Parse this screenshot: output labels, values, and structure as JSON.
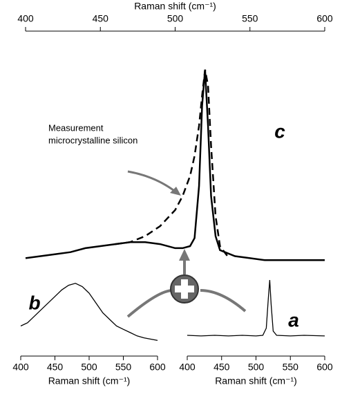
{
  "chart_data": [
    {
      "type": "line",
      "xlabel": "Raman shift (cm⁻¹)",
      "xaxis_position": "top",
      "xlim": [
        400,
        600
      ],
      "xticks": [
        400,
        450,
        500,
        550,
        600
      ],
      "ylim": [
        0,
        100
      ],
      "annotations": [
        "Measurement",
        "microcrystalline silicon",
        "c"
      ],
      "series": [
        {
          "color": "#000000",
          "linestyle": "solid",
          "x": [
            400,
            410,
            420,
            430,
            440,
            450,
            460,
            470,
            480,
            490,
            500,
            505,
            510,
            513,
            516,
            518,
            520,
            522,
            524,
            527,
            530,
            540,
            550,
            560,
            570,
            580,
            590,
            600
          ],
          "values": [
            4,
            5,
            6,
            7,
            9,
            10,
            11,
            12,
            12,
            11,
            9,
            9,
            10,
            14,
            40,
            80,
            98,
            70,
            35,
            15,
            8,
            5,
            4,
            3,
            3,
            3,
            3,
            3
          ]
        },
        {
          "color": "#000000",
          "linestyle": "dashed",
          "x": [
            460,
            470,
            480,
            490,
            500,
            505,
            510,
            513,
            516,
            518,
            520,
            522,
            524,
            527,
            530,
            535
          ],
          "values": [
            11,
            12,
            15,
            20,
            28,
            35,
            45,
            55,
            70,
            85,
            98,
            90,
            60,
            25,
            10,
            5
          ]
        }
      ]
    },
    {
      "type": "line",
      "xlabel": "Raman shift (cm⁻¹)",
      "xaxis_position": "bottom",
      "label": "b",
      "xlim": [
        400,
        600
      ],
      "xticks": [
        400,
        450,
        500,
        550,
        600
      ],
      "ylim": [
        0,
        100
      ],
      "series": [
        {
          "color": "#000000",
          "linestyle": "solid",
          "x": [
            400,
            410,
            420,
            430,
            440,
            450,
            460,
            470,
            480,
            490,
            500,
            510,
            520,
            530,
            540,
            550,
            560,
            570,
            580,
            590,
            600
          ],
          "values": [
            30,
            35,
            45,
            55,
            65,
            75,
            85,
            92,
            95,
            90,
            80,
            65,
            50,
            40,
            30,
            25,
            20,
            15,
            12,
            10,
            8
          ]
        }
      ]
    },
    {
      "type": "line",
      "xlabel": "Raman shift (cm⁻¹)",
      "xaxis_position": "bottom",
      "label": "a",
      "xlim": [
        400,
        600
      ],
      "xticks": [
        400,
        450,
        500,
        550,
        600
      ],
      "ylim": [
        0,
        100
      ],
      "series": [
        {
          "color": "#000000",
          "linestyle": "solid",
          "x": [
            400,
            420,
            440,
            460,
            480,
            500,
            510,
            515,
            518,
            520,
            522,
            525,
            530,
            550,
            570,
            600
          ],
          "values": [
            8,
            7,
            8,
            7,
            8,
            7,
            8,
            20,
            70,
            100,
            60,
            15,
            8,
            7,
            8,
            7
          ]
        }
      ]
    }
  ]
}
